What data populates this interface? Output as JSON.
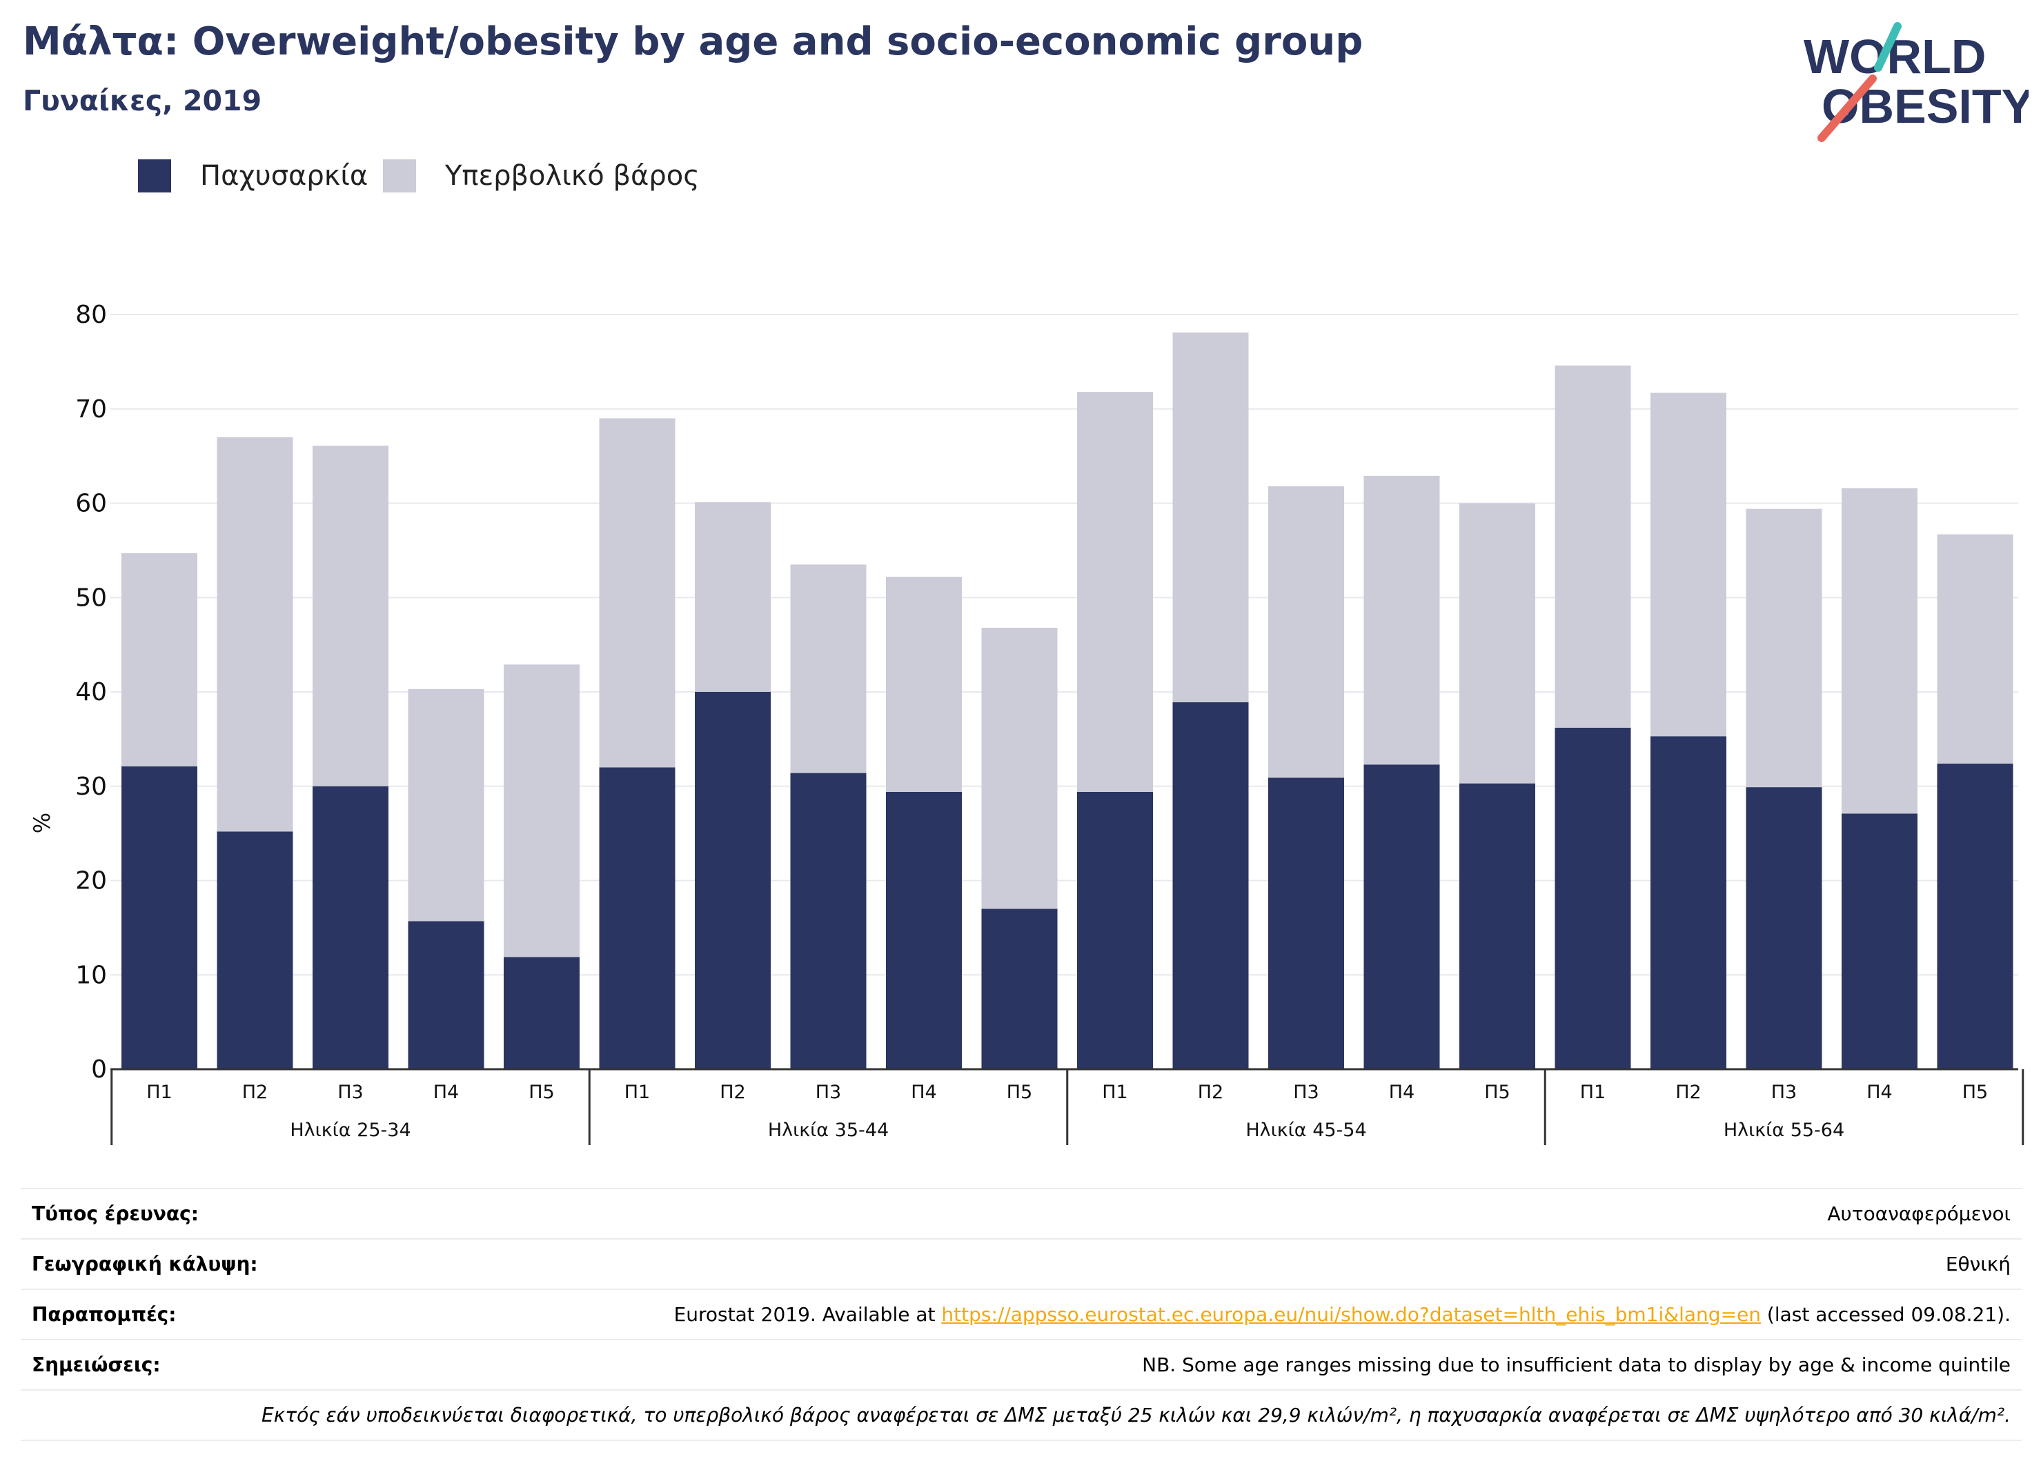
{
  "header": {
    "title": "Μάλτα: Overweight/obesity by age and socio-economic group",
    "subtitle": "Γυναίκες, 2019"
  },
  "logo": {
    "line1": "WORLD",
    "line2": "OBESITY"
  },
  "colors": {
    "obesity": "#2a3562",
    "overweight": "#cbccd8",
    "title": "#2a3560",
    "accent_teal": "#3dbdb5",
    "accent_red": "#e8665a",
    "link": "#f2a90f"
  },
  "chart_data": {
    "type": "bar",
    "stacked": true,
    "ylabel": "%",
    "ylim": [
      0,
      80
    ],
    "yticks": [
      0,
      10,
      20,
      30,
      40,
      50,
      60,
      70,
      80
    ],
    "legend_position": "top-left",
    "grid": true,
    "groups": [
      {
        "label": "Ηλικία 25-34",
        "categories": [
          "Π1",
          "Π2",
          "Π3",
          "Π4",
          "Π5"
        ]
      },
      {
        "label": "Ηλικία 35-44",
        "categories": [
          "Π1",
          "Π2",
          "Π3",
          "Π4",
          "Π5"
        ]
      },
      {
        "label": "Ηλικία 45-54",
        "categories": [
          "Π1",
          "Π2",
          "Π3",
          "Π4",
          "Π5"
        ]
      },
      {
        "label": "Ηλικία 55-64",
        "categories": [
          "Π1",
          "Π2",
          "Π3",
          "Π4",
          "Π5"
        ]
      }
    ],
    "series": [
      {
        "name": "Παχυσαρκία",
        "values": [
          32.1,
          25.2,
          30.0,
          15.7,
          11.9,
          32.0,
          40.0,
          31.4,
          29.4,
          17.0,
          29.4,
          38.9,
          30.9,
          32.3,
          30.3,
          36.2,
          35.3,
          29.9,
          27.1,
          32.4
        ]
      },
      {
        "name": "Υπερβολικό βάρος",
        "values": [
          22.6,
          41.8,
          36.1,
          24.6,
          31.0,
          37.0,
          20.1,
          22.1,
          22.8,
          29.8,
          42.4,
          39.2,
          30.9,
          30.6,
          29.7,
          38.4,
          36.4,
          29.5,
          34.5,
          24.3
        ]
      }
    ]
  },
  "info": {
    "survey_type_label": "Τύπος έρευνας:",
    "survey_type_value": "Αυτοαναφερόμενοι",
    "coverage_label": "Γεωγραφική κάλυψη:",
    "coverage_value": "Εθνική",
    "references_label": "Παραπομπές:",
    "references_prefix": "Eurostat 2019. Available at ",
    "references_link": "https://appsso.eurostat.ec.europa.eu/nui/show.do?dataset=hlth_ehis_bm1i&lang=en",
    "references_suffix": " (last accessed 09.08.21).",
    "notes_label": "Σημειώσεις:",
    "notes_value": "NB. Some age ranges missing due to insufficient data to display by age & income quintile",
    "definition_note": "Εκτός εάν υποδεικνύεται διαφορετικά, το υπερβολικό βάρος αναφέρεται σε ΔΜΣ μεταξύ 25 κιλών και 29,9 κιλών/m², η παχυσαρκία αναφέρεται σε ΔΜΣ υψηλότερο από 30 κιλά/m²."
  }
}
